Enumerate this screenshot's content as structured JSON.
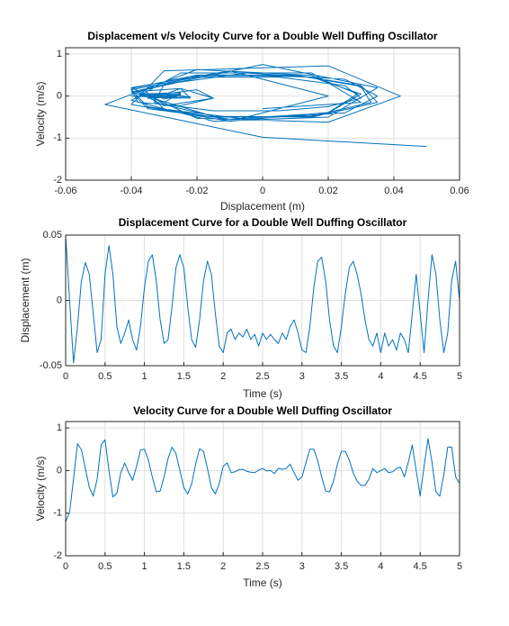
{
  "chart_data": [
    {
      "type": "line",
      "title": "Displacement v/s Velocity Curve for a Double Well Duffing Oscillator",
      "xlabel": "Displacement (m)",
      "ylabel": "Velocity (m/s)",
      "color": "#0072bd",
      "grid": true,
      "xlim": [
        -0.06,
        0.06
      ],
      "ylim": [
        -2,
        1.15
      ],
      "xticks": [
        -0.06,
        -0.04,
        -0.02,
        0,
        0.02,
        0.04,
        0.06
      ],
      "yticks": [
        -2,
        -1,
        0,
        1
      ],
      "x": [
        0.05,
        0.0,
        -0.048,
        -0.02,
        0.015,
        0.029,
        0.02,
        -0.01,
        -0.04,
        -0.03,
        0.02,
        0.042,
        0.02,
        -0.02,
        -0.033,
        -0.025,
        -0.015,
        -0.03,
        -0.038,
        -0.02,
        0.01,
        0.03,
        0.035,
        0.015,
        -0.015,
        -0.033,
        -0.03,
        -0.005,
        0.025,
        0.035,
        0.025,
        -0.005,
        -0.03,
        -0.036,
        -0.015,
        0.015,
        0.03,
        0.02,
        -0.01,
        -0.035,
        -0.04,
        -0.025,
        -0.022,
        -0.03,
        -0.025,
        -0.028,
        -0.022,
        -0.03,
        -0.026,
        -0.035,
        -0.025,
        -0.03,
        -0.026,
        -0.03,
        -0.033,
        -0.025,
        -0.03,
        -0.02,
        -0.015,
        -0.025,
        -0.038,
        -0.04,
        -0.02,
        0.01,
        0.03,
        0.033,
        0.015,
        -0.015,
        -0.035,
        -0.04,
        -0.02,
        0.005,
        0.025,
        0.03,
        0.02,
        0.005,
        -0.015,
        -0.03,
        -0.035,
        -0.025,
        -0.04,
        -0.025,
        -0.035,
        -0.03,
        -0.038,
        -0.025,
        -0.03,
        -0.04,
        -0.01,
        0.02,
        -0.01,
        -0.04,
        0.0,
        0.035,
        0.02,
        -0.015,
        -0.04,
        -0.025,
        0.015,
        0.03,
        0.0
      ],
      "values": [
        -1.2,
        -0.98,
        -0.2,
        0.63,
        0.49,
        0.05,
        -0.39,
        -0.6,
        -0.2,
        0.6,
        0.72,
        0,
        -0.62,
        -0.53,
        -0.05,
        0.18,
        -0.05,
        -0.23,
        0.1,
        0.48,
        0.5,
        0.25,
        -0.15,
        -0.5,
        -0.48,
        -0.15,
        0.28,
        0.55,
        0.4,
        0,
        -0.4,
        -0.55,
        -0.31,
        0.15,
        0.51,
        0.45,
        0.05,
        -0.4,
        -0.55,
        -0.3,
        0.1,
        0.18,
        -0.05,
        -0.03,
        0.02,
        0.03,
        -0.02,
        -0.04,
        -0.05,
        0.01,
        0.05,
        -0.01,
        0,
        -0.07,
        0.05,
        0.03,
        0.05,
        0.15,
        -0.05,
        -0.23,
        -0.15,
        0.18,
        0.5,
        0.5,
        0.23,
        -0.15,
        -0.48,
        -0.5,
        -0.25,
        0.15,
        0.45,
        0.45,
        0.25,
        -0.05,
        -0.25,
        -0.35,
        -0.35,
        -0.2,
        0.05,
        -0.05,
        0,
        0.05,
        -0.05,
        -0.03,
        0.05,
        0.08,
        -0.15,
        0.2,
        0.6,
        0,
        -0.6,
        0.1,
        0.75,
        0.2,
        -0.5,
        -0.6,
        -0.1,
        0.55,
        0.55,
        -0.15,
        -0.3
      ]
    },
    {
      "type": "line",
      "title": "Displacement Curve for a Double Well Duffing Oscillator",
      "xlabel": "Time (s)",
      "ylabel": "Displacement (m)",
      "color": "#0072bd",
      "grid": true,
      "xlim": [
        0,
        5
      ],
      "ylim": [
        -0.05,
        0.05
      ],
      "xticks": [
        0,
        0.5,
        1,
        1.5,
        2,
        2.5,
        3,
        3.5,
        4,
        4.5,
        5
      ],
      "yticks": [
        -0.05,
        0,
        0.05
      ],
      "x": [
        0,
        0.05,
        0.1,
        0.15,
        0.2,
        0.25,
        0.3,
        0.35,
        0.4,
        0.45,
        0.5,
        0.55,
        0.6,
        0.65,
        0.7,
        0.75,
        0.8,
        0.85,
        0.9,
        0.95,
        1,
        1.05,
        1.1,
        1.15,
        1.2,
        1.25,
        1.3,
        1.35,
        1.4,
        1.45,
        1.5,
        1.55,
        1.6,
        1.65,
        1.7,
        1.75,
        1.8,
        1.85,
        1.9,
        1.95,
        2,
        2.05,
        2.1,
        2.15,
        2.2,
        2.25,
        2.3,
        2.35,
        2.4,
        2.45,
        2.5,
        2.55,
        2.6,
        2.65,
        2.7,
        2.75,
        2.8,
        2.85,
        2.9,
        2.95,
        3,
        3.05,
        3.1,
        3.15,
        3.2,
        3.25,
        3.3,
        3.35,
        3.4,
        3.45,
        3.5,
        3.55,
        3.6,
        3.65,
        3.7,
        3.75,
        3.8,
        3.85,
        3.9,
        3.95,
        4,
        4.05,
        4.1,
        4.15,
        4.2,
        4.25,
        4.3,
        4.35,
        4.4,
        4.45,
        4.5,
        4.55,
        4.6,
        4.65,
        4.7,
        4.75,
        4.8,
        4.85,
        4.9,
        4.95,
        5
      ],
      "values": [
        0.05,
        0.0,
        -0.048,
        -0.02,
        0.015,
        0.029,
        0.02,
        -0.01,
        -0.04,
        -0.03,
        0.02,
        0.042,
        0.02,
        -0.02,
        -0.033,
        -0.025,
        -0.015,
        -0.03,
        -0.038,
        -0.02,
        0.01,
        0.03,
        0.035,
        0.015,
        -0.015,
        -0.033,
        -0.03,
        -0.005,
        0.025,
        0.035,
        0.025,
        -0.005,
        -0.03,
        -0.036,
        -0.015,
        0.015,
        0.03,
        0.02,
        -0.01,
        -0.035,
        -0.04,
        -0.025,
        -0.022,
        -0.03,
        -0.025,
        -0.028,
        -0.022,
        -0.03,
        -0.026,
        -0.035,
        -0.025,
        -0.03,
        -0.026,
        -0.03,
        -0.033,
        -0.025,
        -0.03,
        -0.02,
        -0.015,
        -0.025,
        -0.038,
        -0.04,
        -0.02,
        0.01,
        0.03,
        0.033,
        0.015,
        -0.015,
        -0.035,
        -0.04,
        -0.02,
        0.005,
        0.025,
        0.03,
        0.02,
        0.005,
        -0.015,
        -0.03,
        -0.035,
        -0.025,
        -0.04,
        -0.025,
        -0.035,
        -0.03,
        -0.038,
        -0.025,
        -0.03,
        -0.04,
        -0.01,
        0.02,
        -0.01,
        -0.04,
        0.0,
        0.035,
        0.02,
        -0.015,
        -0.04,
        -0.025,
        0.015,
        0.03,
        0.0
      ]
    },
    {
      "type": "line",
      "title": "Velocity Curve for a Double Well Duffing Oscillator",
      "xlabel": "Time (s)",
      "ylabel": "Velocity (m/s)",
      "color": "#0072bd",
      "grid": true,
      "xlim": [
        0,
        5
      ],
      "ylim": [
        -2,
        1.15
      ],
      "xticks": [
        0,
        0.5,
        1,
        1.5,
        2,
        2.5,
        3,
        3.5,
        4,
        4.5,
        5
      ],
      "yticks": [
        -2,
        -1,
        0,
        1
      ],
      "x": [
        0,
        0.05,
        0.1,
        0.15,
        0.2,
        0.25,
        0.3,
        0.35,
        0.4,
        0.45,
        0.5,
        0.55,
        0.6,
        0.65,
        0.7,
        0.75,
        0.8,
        0.85,
        0.9,
        0.95,
        1,
        1.05,
        1.1,
        1.15,
        1.2,
        1.25,
        1.3,
        1.35,
        1.4,
        1.45,
        1.5,
        1.55,
        1.6,
        1.65,
        1.7,
        1.75,
        1.8,
        1.85,
        1.9,
        1.95,
        2,
        2.05,
        2.1,
        2.15,
        2.2,
        2.25,
        2.3,
        2.35,
        2.4,
        2.45,
        2.5,
        2.55,
        2.6,
        2.65,
        2.7,
        2.75,
        2.8,
        2.85,
        2.9,
        2.95,
        3,
        3.05,
        3.1,
        3.15,
        3.2,
        3.25,
        3.3,
        3.35,
        3.4,
        3.45,
        3.5,
        3.55,
        3.6,
        3.65,
        3.7,
        3.75,
        3.8,
        3.85,
        3.9,
        3.95,
        4,
        4.05,
        4.1,
        4.15,
        4.2,
        4.25,
        4.3,
        4.35,
        4.4,
        4.45,
        4.5,
        4.55,
        4.6,
        4.65,
        4.7,
        4.75,
        4.8,
        4.85,
        4.9,
        4.95,
        5
      ],
      "values": [
        -1.2,
        -0.98,
        -0.2,
        0.63,
        0.49,
        0.05,
        -0.39,
        -0.6,
        -0.2,
        0.6,
        0.72,
        0,
        -0.62,
        -0.53,
        -0.05,
        0.18,
        -0.05,
        -0.23,
        0.1,
        0.48,
        0.5,
        0.25,
        -0.15,
        -0.5,
        -0.48,
        -0.15,
        0.28,
        0.55,
        0.4,
        0,
        -0.4,
        -0.55,
        -0.31,
        0.15,
        0.51,
        0.45,
        0.05,
        -0.4,
        -0.55,
        -0.3,
        0.1,
        0.18,
        -0.05,
        -0.03,
        0.02,
        0.03,
        -0.02,
        -0.04,
        -0.05,
        0.01,
        0.05,
        -0.01,
        0,
        -0.07,
        0.05,
        0.03,
        0.05,
        0.15,
        -0.05,
        -0.23,
        -0.15,
        0.18,
        0.5,
        0.5,
        0.23,
        -0.15,
        -0.48,
        -0.5,
        -0.25,
        0.15,
        0.45,
        0.45,
        0.25,
        -0.05,
        -0.25,
        -0.35,
        -0.35,
        -0.2,
        0.05,
        -0.05,
        0,
        0.05,
        -0.05,
        -0.03,
        0.05,
        0.08,
        -0.15,
        0.2,
        0.6,
        0,
        -0.6,
        0.1,
        0.75,
        0.2,
        -0.5,
        -0.6,
        -0.1,
        0.55,
        0.55,
        -0.15,
        -0.3
      ]
    }
  ]
}
